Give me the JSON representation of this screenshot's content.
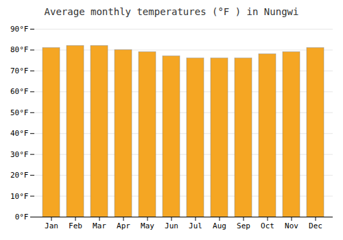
{
  "chart_data": {
    "type": "bar",
    "title": "Average monthly temperatures (°F ) in Nungwi",
    "categories": [
      "Jan",
      "Feb",
      "Mar",
      "Apr",
      "May",
      "Jun",
      "Jul",
      "Aug",
      "Sep",
      "Oct",
      "Nov",
      "Dec"
    ],
    "values": [
      81,
      82,
      82,
      80,
      79,
      77,
      76,
      76,
      76,
      78,
      79,
      81
    ],
    "color": "#F5A623",
    "ylim": [
      0,
      90
    ],
    "yticks": [
      {
        "value": 0,
        "label": "0°F"
      },
      {
        "value": 10,
        "label": "10°F"
      },
      {
        "value": 20,
        "label": "20°F"
      },
      {
        "value": 30,
        "label": "30°F"
      },
      {
        "value": 40,
        "label": "40°F"
      },
      {
        "value": 50,
        "label": "50°F"
      },
      {
        "value": 60,
        "label": "60°F"
      },
      {
        "value": 70,
        "label": "70°F"
      },
      {
        "value": 80,
        "label": "80°F"
      },
      {
        "value": 90,
        "label": "90°F"
      }
    ],
    "grid": true
  }
}
